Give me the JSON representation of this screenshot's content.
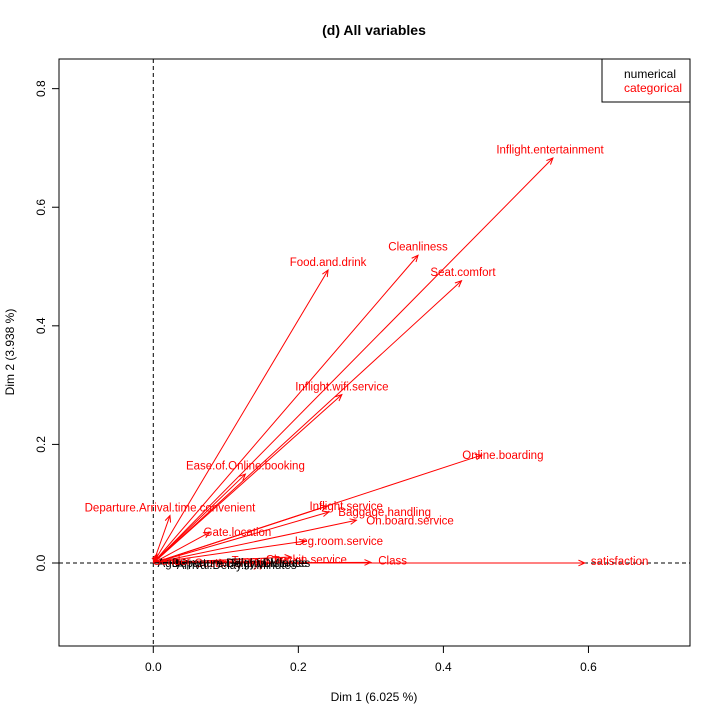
{
  "chart_data": {
    "type": "scatter",
    "title": "(d) All variables",
    "xlabel": "Dim 1 (6.025 %)",
    "ylabel": "Dim 2 (3.938 %)",
    "xlim": [
      -0.13,
      0.74
    ],
    "ylim": [
      -0.14,
      0.85
    ],
    "xticks": [
      0.0,
      0.2,
      0.4,
      0.6
    ],
    "yticks": [
      0.0,
      0.2,
      0.4,
      0.6,
      0.8
    ],
    "xtick_labels": [
      "0.0",
      "0.2",
      "0.4",
      "0.6"
    ],
    "ytick_labels": [
      "0.0",
      "0.2",
      "0.4",
      "0.6",
      "0.8"
    ],
    "reference_lines": {
      "x": 0,
      "y": 0,
      "style": "dashed"
    },
    "legend": {
      "position": "top-right",
      "entries": [
        {
          "label": "numerical",
          "color": "#000000"
        },
        {
          "label": "categorical",
          "color": "#ff0000"
        }
      ]
    },
    "arrows": [
      {
        "name": "Inflight.entertainment",
        "x": 0.551,
        "y": 0.683,
        "type": "categorical"
      },
      {
        "name": "Cleanliness",
        "x": 0.365,
        "y": 0.519,
        "type": "categorical"
      },
      {
        "name": "Seat.comfort",
        "x": 0.425,
        "y": 0.476,
        "type": "categorical"
      },
      {
        "name": "Food.and.drink",
        "x": 0.241,
        "y": 0.494,
        "type": "categorical"
      },
      {
        "name": "Inflight.wifi.service",
        "x": 0.26,
        "y": 0.284,
        "type": "categorical"
      },
      {
        "name": "Ease.of.Online.booking",
        "x": 0.127,
        "y": 0.15,
        "type": "categorical"
      },
      {
        "name": "Online.boarding",
        "x": 0.453,
        "y": 0.182,
        "type": "categorical"
      },
      {
        "name": "Departure.Arrival.time.convenient",
        "x": 0.023,
        "y": 0.08,
        "type": "categorical"
      },
      {
        "name": "Inflight.service",
        "x": 0.24,
        "y": 0.096,
        "type": "categorical"
      },
      {
        "name": "Baggage.handling",
        "x": 0.242,
        "y": 0.086,
        "type": "categorical"
      },
      {
        "name": "On.board.service",
        "x": 0.28,
        "y": 0.072,
        "type": "categorical"
      },
      {
        "name": "Gate.location",
        "x": 0.078,
        "y": 0.052,
        "type": "categorical"
      },
      {
        "name": "Leg.room.service",
        "x": 0.21,
        "y": 0.037,
        "type": "categorical"
      },
      {
        "name": "Checkin.service",
        "x": 0.19,
        "y": 0.01,
        "type": "categorical"
      },
      {
        "name": "Class",
        "x": 0.3,
        "y": 0.001,
        "type": "categorical"
      },
      {
        "name": "satisfaction",
        "x": 0.595,
        "y": 0.0,
        "type": "categorical"
      },
      {
        "name": "Type.of.Travel",
        "x": 0.15,
        "y": 0.002,
        "type": "categorical"
      },
      {
        "name": "Customer.Type",
        "x": 0.1,
        "y": 0.002,
        "type": "categorical"
      },
      {
        "name": "Departure.Delay.in.Minutes",
        "x": 0.04,
        "y": 0.001,
        "type": "numerical"
      },
      {
        "name": "Arrival.Delay.in.Minutes",
        "x": 0.04,
        "y": -0.001,
        "type": "numerical"
      },
      {
        "name": "Flight.Distance",
        "x": 0.12,
        "y": 0.0,
        "type": "numerical"
      },
      {
        "name": "Age",
        "x": 0.05,
        "y": 0.002,
        "type": "numerical"
      },
      {
        "name": "Gender",
        "x": 0.005,
        "y": 0.015,
        "type": "categorical"
      }
    ],
    "labels": [
      {
        "text": "Inflight.entertainment",
        "x": 0.547,
        "y": 0.697,
        "type": "categorical"
      },
      {
        "text": "Cleanliness",
        "x": 0.365,
        "y": 0.534,
        "type": "categorical"
      },
      {
        "text": "Seat.comfort",
        "x": 0.427,
        "y": 0.491,
        "type": "categorical"
      },
      {
        "text": "Food.and.drink",
        "x": 0.241,
        "y": 0.508,
        "type": "categorical"
      },
      {
        "text": "Inflight.wifi.service",
        "x": 0.26,
        "y": 0.298,
        "type": "categorical"
      },
      {
        "text": "Ease.of.Online.booking",
        "x": 0.127,
        "y": 0.164,
        "type": "categorical"
      },
      {
        "text": "Online.boarding",
        "x": 0.482,
        "y": 0.182,
        "type": "categorical"
      },
      {
        "text": "Departure.Arrival.time.convenient",
        "x": 0.023,
        "y": 0.094,
        "type": "categorical"
      },
      {
        "text": "Inflight.service",
        "x": 0.266,
        "y": 0.096,
        "type": "categorical"
      },
      {
        "text": "Baggage.handling",
        "x": 0.319,
        "y": 0.086,
        "type": "categorical"
      },
      {
        "text": "On.board.service",
        "x": 0.354,
        "y": 0.072,
        "type": "categorical"
      },
      {
        "text": "Gate.location",
        "x": 0.116,
        "y": 0.052,
        "type": "categorical"
      },
      {
        "text": "Leg.room.service",
        "x": 0.256,
        "y": 0.037,
        "type": "categorical"
      },
      {
        "text": "Checkin.service",
        "x": 0.211,
        "y": 0.006,
        "type": "categorical"
      },
      {
        "text": "Class",
        "x": 0.33,
        "y": 0.004,
        "type": "categorical"
      },
      {
        "text": "satisfaction",
        "x": 0.643,
        "y": 0.003,
        "type": "categorical"
      },
      {
        "text": "Type.of.Travel",
        "x": 0.158,
        "y": 0.004,
        "type": "categorical"
      },
      {
        "text": "Customer.Type",
        "x": 0.11,
        "y": 0.0,
        "type": "categorical"
      },
      {
        "text": "Departure.Delay.in.Minutes",
        "x": 0.121,
        "y": 0.0,
        "type": "numerical"
      },
      {
        "text": "Arrival.Delay.in.Minutes",
        "x": 0.115,
        "y": -0.003,
        "type": "numerical"
      },
      {
        "text": "Flight.Distance",
        "x": 0.16,
        "y": 0.0,
        "type": "numerical"
      },
      {
        "text": "Age",
        "x": 0.02,
        "y": 0.0,
        "type": "numerical"
      },
      {
        "text": "Gender",
        "x": 0.025,
        "y": 0.003,
        "type": "categorical"
      }
    ],
    "colors": {
      "categorical": "#ff0000",
      "numerical": "#000000"
    }
  }
}
